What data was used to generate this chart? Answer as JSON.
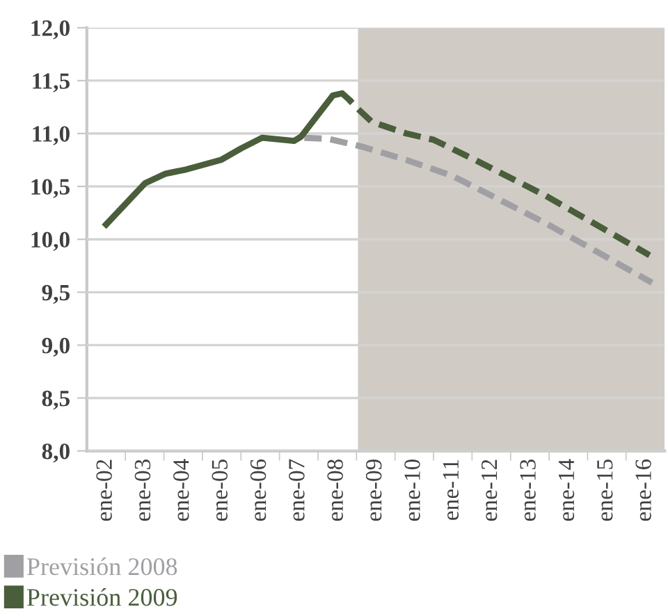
{
  "chart_data": {
    "type": "line",
    "x": [
      "2002-01-01",
      "2003-01-05",
      "2003-07-18",
      "2004-01-30",
      "2004-12-24",
      "2005-07-05",
      "2006-01-19",
      "2006-11-17",
      "2007-01-23",
      "2007-11-21",
      "2008-02-17",
      "2008-04-23"
    ],
    "series": [
      {
        "name": "Previsión 2008",
        "color": "#a0a0a4",
        "line_style": "dashed",
        "x": [
          "2007-01-23",
          "2007-10-09",
          "2008-08-07",
          "2009-10-19",
          "2010-12-28",
          "2012-03-07",
          "2013-05-16",
          "2014-07-24",
          "2016-03-04"
        ],
        "values": [
          10.96,
          10.95,
          10.88,
          10.75,
          10.6,
          10.38,
          10.16,
          9.92,
          9.59
        ]
      },
      {
        "name": "Previsión 2009",
        "color": "#4a5e3c",
        "line_style": "solid",
        "values": [
          10.14,
          10.53,
          10.62,
          10.66,
          10.75,
          10.86,
          10.96,
          10.93,
          10.97,
          11.36,
          11.38,
          11.32
        ]
      },
      {
        "color": "#4a5e3c",
        "line_style": "dashed",
        "x": [
          "2008-04-23",
          "2008-07-19",
          "2008-11-24",
          "2009-10-19",
          "2010-07-05",
          "2011-07-31",
          "2013-05-16",
          "2016-02-10"
        ],
        "values": [
          11.32,
          11.23,
          11.11,
          11.0,
          10.94,
          10.75,
          10.42,
          9.85
        ]
      }
    ],
    "xlim": [
      "2001-07-02",
      "2016-07-02"
    ],
    "xticks": [
      {
        "value": "2002-01-01",
        "label": "ene-02"
      },
      {
        "value": "2003-01-01",
        "label": "ene-03"
      },
      {
        "value": "2004-01-01",
        "label": "ene-04"
      },
      {
        "value": "2005-01-01",
        "label": "ene-05"
      },
      {
        "value": "2006-01-01",
        "label": "ene-06"
      },
      {
        "value": "2007-01-01",
        "label": "ene-07"
      },
      {
        "value": "2008-01-01",
        "label": "ene-08"
      },
      {
        "value": "2009-01-01",
        "label": "ene-09"
      },
      {
        "value": "2010-01-01",
        "label": "ene-10"
      },
      {
        "value": "2011-01-01",
        "label": "ene-11"
      },
      {
        "value": "2012-01-01",
        "label": "ene-12"
      },
      {
        "value": "2013-01-01",
        "label": "ene-13"
      },
      {
        "value": "2014-01-01",
        "label": "ene-14"
      },
      {
        "value": "2015-01-01",
        "label": "ene-15"
      },
      {
        "value": "2016-01-01",
        "label": "ene-16"
      }
    ],
    "ylim": [
      8,
      12
    ],
    "yticks": [
      {
        "value": 8,
        "label": "8,0"
      },
      {
        "value": 8.5,
        "label": "8,5"
      },
      {
        "value": 9,
        "label": "9,0"
      },
      {
        "value": 9.5,
        "label": "9,5"
      },
      {
        "value": 10,
        "label": "10,0"
      },
      {
        "value": 10.5,
        "label": "10,5"
      },
      {
        "value": 11,
        "label": "11,0"
      },
      {
        "value": 11.5,
        "label": "11,5"
      },
      {
        "value": 12,
        "label": "12,0"
      }
    ],
    "bands": [
      {
        "axis": "x",
        "from": "2008-07-16",
        "to": "2016-07-02",
        "color": "#d0ccc5"
      }
    ],
    "grid": "y",
    "legend": "bottom left",
    "marker": "none"
  }
}
